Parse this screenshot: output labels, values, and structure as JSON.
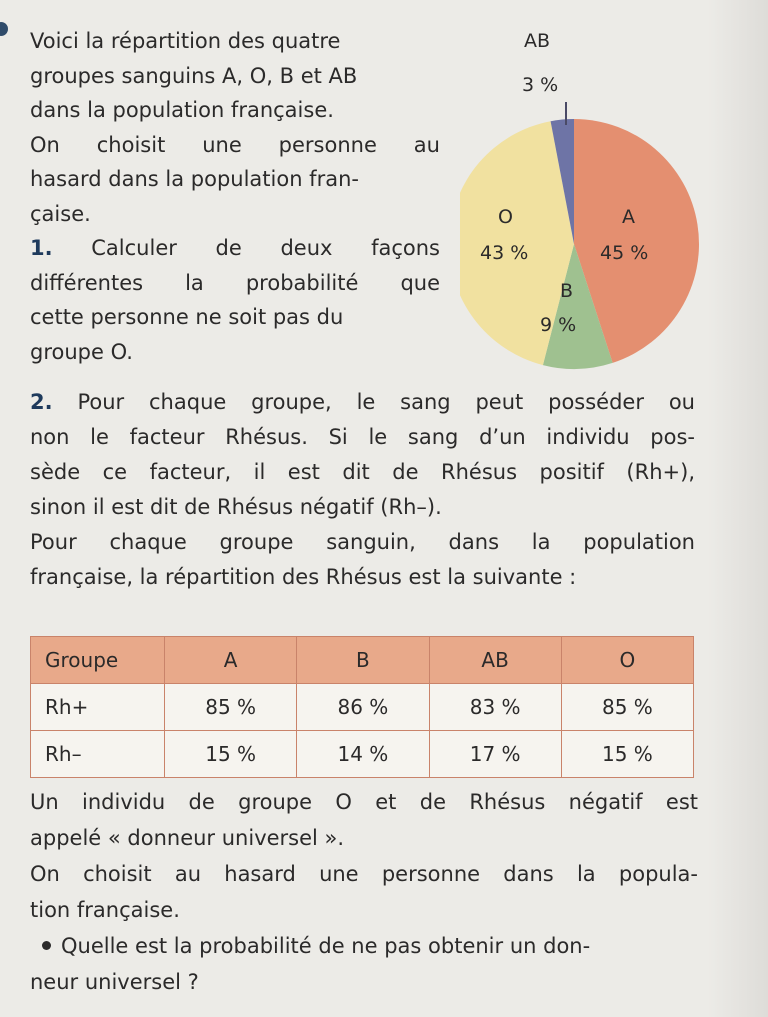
{
  "intro": {
    "lines": [
      "Voici la répartition des quatre",
      "groupes sanguins A, O, B et AB",
      "dans la population française.",
      "On choisit une personne au",
      "hasard dans la population fran-",
      "çaise."
    ],
    "q1_number": "1.",
    "q1_lines": [
      "Calculer de deux façons",
      "différentes la probabilité que",
      "cette personne ne soit pas du",
      "groupe O."
    ]
  },
  "chart_data": {
    "type": "pie",
    "slices": [
      {
        "label": "A",
        "value": 45,
        "value_label": "45 %",
        "color": "#e48f70"
      },
      {
        "label": "B",
        "value": 9,
        "value_label": "9 %",
        "color": "#9fc190"
      },
      {
        "label": "O",
        "value": 43,
        "value_label": "43 %",
        "color": "#f1e1a0"
      },
      {
        "label": "AB",
        "value": 3,
        "value_label": "3 %",
        "color": "#6e74a6"
      }
    ]
  },
  "q2": {
    "number": "2.",
    "lines": [
      "Pour chaque groupe, le sang peut posséder ou",
      "non le facteur Rhésus. Si le sang d’un individu pos-",
      "sède ce facteur, il est dit de Rhésus positif (Rh+),",
      "sinon il est dit de Rhésus négatif (Rh–).",
      "Pour chaque groupe sanguin, dans la population",
      "française, la répartition des Rhésus est la suivante :"
    ]
  },
  "table": {
    "headers": [
      "Groupe",
      "A",
      "B",
      "AB",
      "O"
    ],
    "rows": [
      [
        "Rh+",
        "85 %",
        "86 %",
        "83 %",
        "85 %"
      ],
      [
        "Rh–",
        "15 %",
        "14 %",
        "17 %",
        "15 %"
      ]
    ]
  },
  "after": {
    "lines": [
      "Un individu de groupe O et de Rhésus négatif est",
      "appelé « donneur universel ».",
      "On choisit au hasard une personne dans la popula-",
      "tion française."
    ],
    "question_lines": [
      "Quelle est la probabilité de ne pas obtenir un don-",
      "neur universel ?"
    ]
  }
}
